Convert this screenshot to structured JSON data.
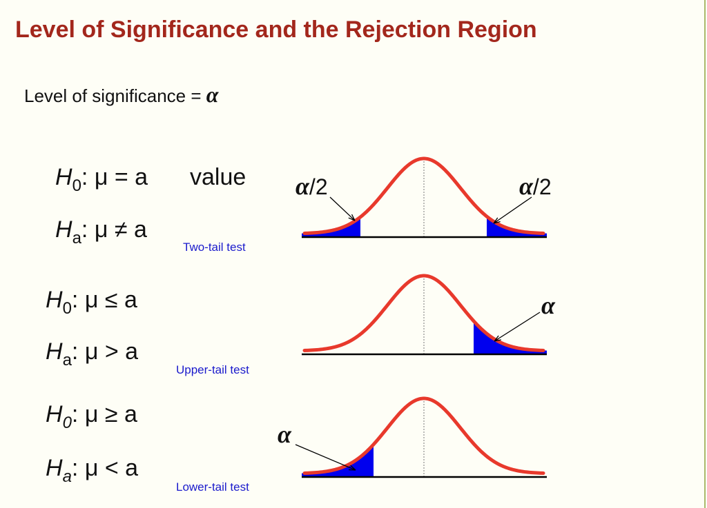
{
  "title": "Level of Significance and the Rejection Region",
  "intro": {
    "text": "Level of significance =",
    "symbol": "α"
  },
  "tests": [
    {
      "h0": {
        "symbol": "H",
        "sub": "0",
        "relation": ": μ = a"
      },
      "value_note": "value",
      "ha": {
        "symbol": "H",
        "sub": "a",
        "relation": ": μ ≠ a"
      },
      "name": "Two-tail test",
      "tail_labels": [
        {
          "symbol": "α",
          "rest": "/2"
        },
        {
          "symbol": "α",
          "rest": "/2"
        }
      ]
    },
    {
      "h0": {
        "symbol": "H",
        "sub": "0",
        "relation": ": μ ≤ a"
      },
      "ha": {
        "symbol": "H",
        "sub": "a",
        "relation": ": μ > a"
      },
      "name": "Upper-tail test",
      "tail_labels": [
        {
          "symbol": "α"
        }
      ]
    },
    {
      "h0": {
        "symbol": "H",
        "sub": "0",
        "relation": ": μ ≥ a"
      },
      "ha": {
        "symbol": "H",
        "sub": "a",
        "relation": ": μ < a"
      },
      "name": "Lower-tail test",
      "tail_labels": [
        {
          "symbol": "α"
        }
      ]
    }
  ]
}
